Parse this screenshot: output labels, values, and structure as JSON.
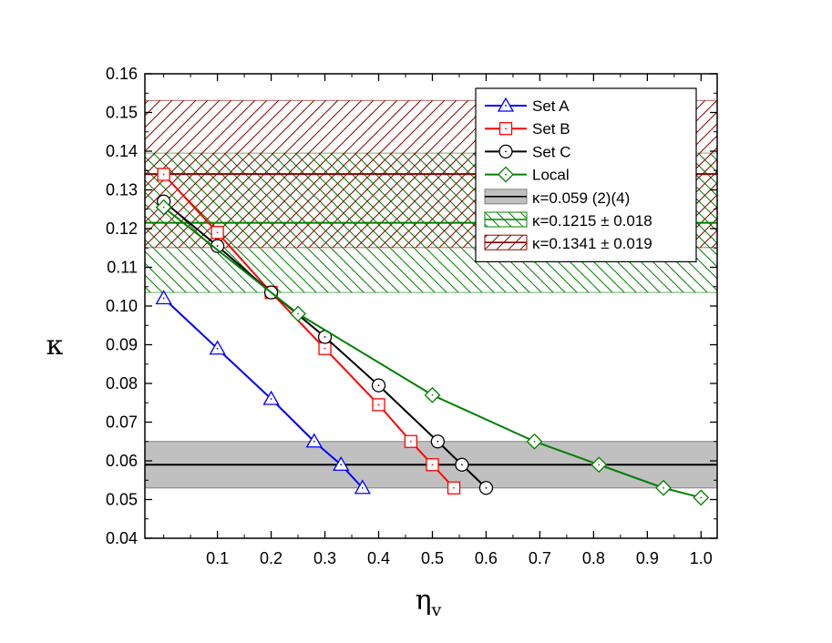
{
  "chart_data": {
    "type": "line",
    "title": "",
    "xlabel": "η",
    "xlabel_sub": "v",
    "ylabel": "κ",
    "xlim": [
      -0.035,
      1.03
    ],
    "ylim": [
      0.04,
      0.16
    ],
    "x_ticks": [
      0.1,
      0.2,
      0.3,
      0.4,
      0.5,
      0.6,
      0.7,
      0.8,
      0.9,
      1.0
    ],
    "x_tick_labels": [
      "0.1",
      "0.2",
      "0.3",
      "0.4",
      "0.5",
      "0.6",
      "0.7",
      "0.8",
      "0.9",
      "1.0"
    ],
    "y_ticks": [
      0.04,
      0.05,
      0.06,
      0.07,
      0.08,
      0.09,
      0.1,
      0.11,
      0.12,
      0.13,
      0.14,
      0.15,
      0.16
    ],
    "y_tick_labels": [
      "0.04",
      "0.05",
      "0.06",
      "0.07",
      "0.08",
      "0.09",
      "0.10",
      "0.11",
      "0.12",
      "0.13",
      "0.14",
      "0.15",
      "0.16"
    ],
    "grid": false,
    "legend_position": "top-right",
    "series": [
      {
        "name": "Set A",
        "color": "#0000ff",
        "marker": "triangle",
        "x": [
          0.0,
          0.1,
          0.2,
          0.28,
          0.33,
          0.37
        ],
        "y": [
          0.102,
          0.089,
          0.076,
          0.065,
          0.059,
          0.053
        ]
      },
      {
        "name": "Set B",
        "color": "#ff0000",
        "marker": "square",
        "x": [
          0.0,
          0.1,
          0.2,
          0.3,
          0.4,
          0.46,
          0.5,
          0.54
        ],
        "y": [
          0.134,
          0.119,
          0.1035,
          0.089,
          0.0745,
          0.065,
          0.059,
          0.053
        ]
      },
      {
        "name": "Set C",
        "color": "#000000",
        "marker": "circle",
        "x": [
          0.0,
          0.1,
          0.2,
          0.3,
          0.4,
          0.51,
          0.555,
          0.6
        ],
        "y": [
          0.127,
          0.1155,
          0.1035,
          0.092,
          0.0795,
          0.065,
          0.059,
          0.053
        ]
      },
      {
        "name": "Local",
        "color": "#008000",
        "marker": "diamond",
        "x": [
          0.0,
          0.25,
          0.5,
          0.69,
          0.81,
          0.93,
          1.0
        ],
        "y": [
          0.1255,
          0.098,
          0.077,
          0.065,
          0.059,
          0.053,
          0.0505
        ]
      }
    ],
    "bands": [
      {
        "name": "κ=0.059 (2)(4)",
        "center": 0.059,
        "low": 0.053,
        "high": 0.065,
        "fill": "#c0c0c0",
        "line_color": "#000000",
        "hatch": "solid"
      },
      {
        "name": "κ=0.1215 ± 0.018",
        "center": 0.1215,
        "low": 0.1035,
        "high": 0.1395,
        "fill": "#008000",
        "line_color": "#008000",
        "hatch": "diagonal-down"
      },
      {
        "name": "κ=0.1341 ± 0.019",
        "center": 0.1341,
        "low": 0.1151,
        "high": 0.1531,
        "fill": "#8b0000",
        "line_color": "#8b0000",
        "hatch": "diagonal-up"
      }
    ]
  }
}
